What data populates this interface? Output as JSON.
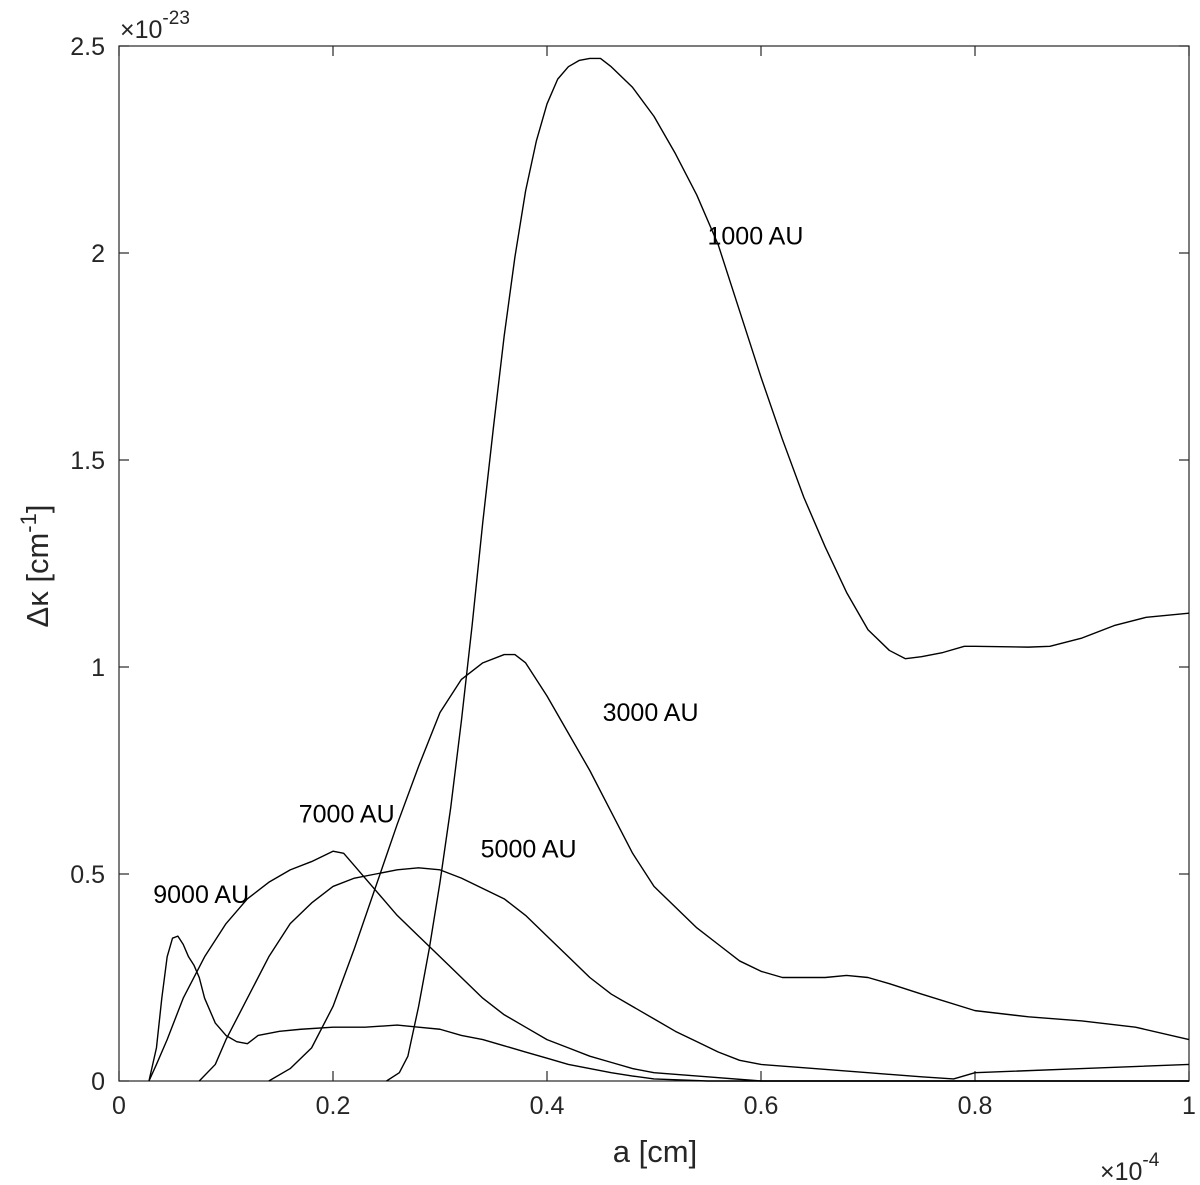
{
  "chart_data": {
    "type": "line",
    "xlabel": "a  [cm]",
    "ylabel": {
      "prefix": "Δκ [cm",
      "sup": "-1",
      "suffix": "]"
    },
    "x_exponent": {
      "base": "×10",
      "power": "-4"
    },
    "y_exponent": {
      "base": "×10",
      "power": "-23"
    },
    "xlim": [
      0,
      1
    ],
    "ylim": [
      0,
      2.5
    ],
    "xticks": [
      "0",
      "0.2",
      "0.4",
      "0.6",
      "0.8",
      "1"
    ],
    "yticks": [
      "0",
      "0.5",
      "1",
      "1.5",
      "2",
      "2.5"
    ],
    "xtick_values": [
      0,
      0.2,
      0.4,
      0.6,
      0.8,
      1.0
    ],
    "ytick_values": [
      0,
      0.5,
      1,
      1.5,
      2,
      2.5
    ],
    "grid": false,
    "line_color": "#000000",
    "axis_color": "#262626",
    "series": [
      {
        "name": "1000 AU",
        "points": [
          [
            0.25,
            0
          ],
          [
            0.262,
            0.02
          ],
          [
            0.27,
            0.06
          ],
          [
            0.28,
            0.18
          ],
          [
            0.29,
            0.32
          ],
          [
            0.3,
            0.48
          ],
          [
            0.31,
            0.66
          ],
          [
            0.32,
            0.87
          ],
          [
            0.33,
            1.1
          ],
          [
            0.34,
            1.35
          ],
          [
            0.35,
            1.58
          ],
          [
            0.36,
            1.8
          ],
          [
            0.37,
            1.99
          ],
          [
            0.38,
            2.15
          ],
          [
            0.39,
            2.27
          ],
          [
            0.4,
            2.36
          ],
          [
            0.41,
            2.42
          ],
          [
            0.42,
            2.45
          ],
          [
            0.43,
            2.465
          ],
          [
            0.44,
            2.47
          ],
          [
            0.45,
            2.47
          ],
          [
            0.46,
            2.45
          ],
          [
            0.48,
            2.4
          ],
          [
            0.5,
            2.33
          ],
          [
            0.52,
            2.24
          ],
          [
            0.54,
            2.14
          ],
          [
            0.56,
            2.02
          ],
          [
            0.58,
            1.86
          ],
          [
            0.6,
            1.7
          ],
          [
            0.62,
            1.55
          ],
          [
            0.64,
            1.41
          ],
          [
            0.66,
            1.29
          ],
          [
            0.68,
            1.18
          ],
          [
            0.7,
            1.09
          ],
          [
            0.72,
            1.04
          ],
          [
            0.735,
            1.02
          ],
          [
            0.75,
            1.025
          ],
          [
            0.77,
            1.035
          ],
          [
            0.79,
            1.05
          ],
          [
            0.8,
            1.05
          ],
          [
            0.85,
            1.048
          ],
          [
            0.87,
            1.05
          ],
          [
            0.9,
            1.07
          ],
          [
            0.93,
            1.1
          ],
          [
            0.96,
            1.12
          ],
          [
            1.0,
            1.13
          ]
        ]
      },
      {
        "name": "3000 AU",
        "points": [
          [
            0.14,
            0
          ],
          [
            0.16,
            0.03
          ],
          [
            0.18,
            0.08
          ],
          [
            0.2,
            0.18
          ],
          [
            0.22,
            0.32
          ],
          [
            0.24,
            0.47
          ],
          [
            0.26,
            0.62
          ],
          [
            0.28,
            0.76
          ],
          [
            0.3,
            0.89
          ],
          [
            0.32,
            0.97
          ],
          [
            0.34,
            1.01
          ],
          [
            0.36,
            1.03
          ],
          [
            0.37,
            1.03
          ],
          [
            0.38,
            1.01
          ],
          [
            0.4,
            0.93
          ],
          [
            0.42,
            0.84
          ],
          [
            0.44,
            0.75
          ],
          [
            0.46,
            0.65
          ],
          [
            0.48,
            0.55
          ],
          [
            0.5,
            0.47
          ],
          [
            0.52,
            0.42
          ],
          [
            0.54,
            0.37
          ],
          [
            0.56,
            0.33
          ],
          [
            0.58,
            0.29
          ],
          [
            0.6,
            0.265
          ],
          [
            0.62,
            0.25
          ],
          [
            0.64,
            0.25
          ],
          [
            0.66,
            0.25
          ],
          [
            0.68,
            0.255
          ],
          [
            0.7,
            0.25
          ],
          [
            0.72,
            0.235
          ],
          [
            0.75,
            0.21
          ],
          [
            0.8,
            0.17
          ],
          [
            0.85,
            0.155
          ],
          [
            0.9,
            0.145
          ],
          [
            0.95,
            0.13
          ],
          [
            1.0,
            0.1
          ]
        ]
      },
      {
        "name": "5000 AU",
        "points": [
          [
            0.075,
            0
          ],
          [
            0.09,
            0.04
          ],
          [
            0.1,
            0.1
          ],
          [
            0.12,
            0.2
          ],
          [
            0.14,
            0.3
          ],
          [
            0.16,
            0.38
          ],
          [
            0.18,
            0.43
          ],
          [
            0.2,
            0.47
          ],
          [
            0.22,
            0.49
          ],
          [
            0.24,
            0.5
          ],
          [
            0.26,
            0.51
          ],
          [
            0.28,
            0.515
          ],
          [
            0.3,
            0.51
          ],
          [
            0.32,
            0.49
          ],
          [
            0.34,
            0.465
          ],
          [
            0.36,
            0.44
          ],
          [
            0.38,
            0.4
          ],
          [
            0.4,
            0.35
          ],
          [
            0.42,
            0.3
          ],
          [
            0.44,
            0.25
          ],
          [
            0.46,
            0.21
          ],
          [
            0.48,
            0.18
          ],
          [
            0.5,
            0.15
          ],
          [
            0.52,
            0.12
          ],
          [
            0.54,
            0.095
          ],
          [
            0.56,
            0.07
          ],
          [
            0.58,
            0.05
          ],
          [
            0.6,
            0.04
          ],
          [
            0.65,
            0.03
          ],
          [
            0.7,
            0.02
          ],
          [
            0.75,
            0.01
          ],
          [
            0.78,
            0.005
          ],
          [
            0.8,
            0.02
          ],
          [
            0.9,
            0.03
          ],
          [
            1.0,
            0.04
          ]
        ]
      },
      {
        "name": "7000 AU",
        "points": [
          [
            0.028,
            0
          ],
          [
            0.035,
            0.04
          ],
          [
            0.045,
            0.1
          ],
          [
            0.06,
            0.2
          ],
          [
            0.08,
            0.3
          ],
          [
            0.1,
            0.38
          ],
          [
            0.12,
            0.44
          ],
          [
            0.14,
            0.48
          ],
          [
            0.16,
            0.51
          ],
          [
            0.18,
            0.53
          ],
          [
            0.2,
            0.555
          ],
          [
            0.21,
            0.55
          ],
          [
            0.22,
            0.52
          ],
          [
            0.24,
            0.46
          ],
          [
            0.26,
            0.4
          ],
          [
            0.28,
            0.35
          ],
          [
            0.3,
            0.3
          ],
          [
            0.32,
            0.25
          ],
          [
            0.34,
            0.2
          ],
          [
            0.36,
            0.16
          ],
          [
            0.38,
            0.13
          ],
          [
            0.4,
            0.1
          ],
          [
            0.42,
            0.08
          ],
          [
            0.44,
            0.06
          ],
          [
            0.46,
            0.045
          ],
          [
            0.48,
            0.03
          ],
          [
            0.5,
            0.02
          ],
          [
            0.55,
            0.01
          ],
          [
            0.6,
            0.0
          ],
          [
            0.7,
            0.0
          ],
          [
            1.0,
            0.0
          ]
        ]
      },
      {
        "name": "9000 AU",
        "points": [
          [
            0.028,
            0
          ],
          [
            0.035,
            0.08
          ],
          [
            0.04,
            0.2
          ],
          [
            0.045,
            0.3
          ],
          [
            0.05,
            0.345
          ],
          [
            0.055,
            0.35
          ],
          [
            0.06,
            0.33
          ],
          [
            0.065,
            0.3
          ],
          [
            0.07,
            0.28
          ],
          [
            0.075,
            0.25
          ],
          [
            0.08,
            0.2
          ],
          [
            0.09,
            0.14
          ],
          [
            0.1,
            0.11
          ],
          [
            0.11,
            0.095
          ],
          [
            0.12,
            0.09
          ],
          [
            0.13,
            0.11
          ],
          [
            0.15,
            0.12
          ],
          [
            0.17,
            0.125
          ],
          [
            0.2,
            0.13
          ],
          [
            0.23,
            0.13
          ],
          [
            0.26,
            0.135
          ],
          [
            0.28,
            0.13
          ],
          [
            0.3,
            0.125
          ],
          [
            0.32,
            0.11
          ],
          [
            0.34,
            0.1
          ],
          [
            0.36,
            0.085
          ],
          [
            0.38,
            0.07
          ],
          [
            0.4,
            0.055
          ],
          [
            0.42,
            0.04
          ],
          [
            0.44,
            0.03
          ],
          [
            0.46,
            0.02
          ],
          [
            0.48,
            0.012
          ],
          [
            0.5,
            0.005
          ],
          [
            0.55,
            0.0
          ],
          [
            0.6,
            0.0
          ],
          [
            1.0,
            0.0
          ]
        ]
      }
    ],
    "annotations": [
      {
        "text": "1000 AU",
        "x": 0.55,
        "y": 2.02
      },
      {
        "text": "3000 AU",
        "x": 0.452,
        "y": 0.87
      },
      {
        "text": "5000 AU",
        "x": 0.338,
        "y": 0.54
      },
      {
        "text": "7000 AU",
        "x": 0.168,
        "y": 0.625
      },
      {
        "text": "9000 AU",
        "x": 0.032,
        "y": 0.43
      }
    ]
  }
}
